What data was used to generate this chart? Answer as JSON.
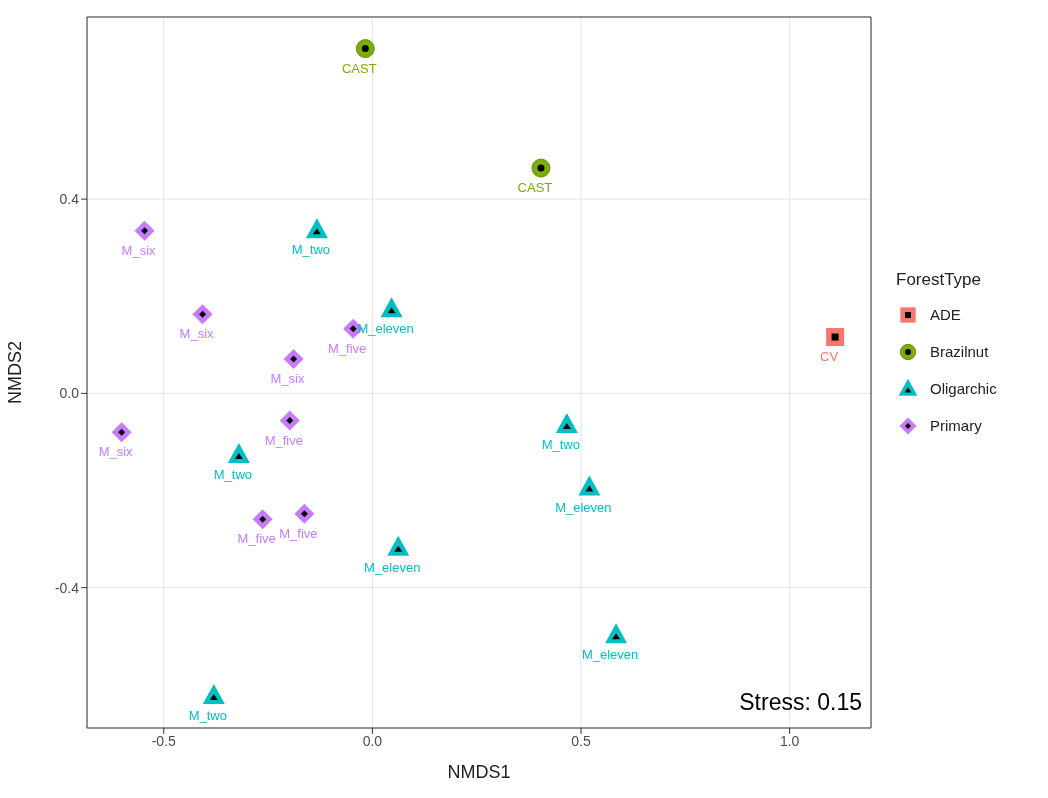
{
  "chart_data": {
    "type": "scatter",
    "xlabel": "NMDS1",
    "ylabel": "NMDS2",
    "legend_title": "ForestType",
    "legend": "right",
    "grid": true,
    "xlim": [
      -0.684,
      1.195
    ],
    "ylim": [
      -0.689,
      0.775
    ],
    "xticks": [
      {
        "value": -0.5,
        "label": "-0.5"
      },
      {
        "value": 0,
        "label": "0.0"
      },
      {
        "value": 0.5,
        "label": "0.5"
      },
      {
        "value": 1,
        "label": "1.0"
      }
    ],
    "yticks": [
      {
        "value": -0.4,
        "label": "-0.4"
      },
      {
        "value": 0,
        "label": "0.0"
      },
      {
        "value": 0.4,
        "label": "0.4"
      }
    ],
    "series": [
      {
        "name": "ADE",
        "color": "#f8766d",
        "marker": "square",
        "x": [
          1.109
        ],
        "values": [
          0.116
        ]
      },
      {
        "name": "Brazilnut",
        "color": "#7cae00",
        "marker": "circle",
        "x": [
          -0.017,
          0.404
        ],
        "values": [
          0.71,
          0.464
        ]
      },
      {
        "name": "Oligarchic",
        "color": "#00bfc4",
        "marker": "triangle",
        "x": [
          -0.133,
          0.046,
          0.466,
          -0.32,
          0.52,
          0.062,
          0.584,
          -0.38
        ],
        "values": [
          0.336,
          0.173,
          -0.065,
          -0.127,
          -0.194,
          -0.318,
          -0.498,
          -0.623
        ]
      },
      {
        "name": "Primary",
        "color": "#c77cff",
        "marker": "diamond",
        "x": [
          -0.546,
          -0.407,
          -0.046,
          -0.189,
          -0.198,
          -0.601,
          -0.163,
          -0.263
        ],
        "values": [
          0.335,
          0.163,
          0.133,
          0.071,
          -0.056,
          -0.08,
          -0.248,
          -0.259
        ]
      }
    ],
    "annotations": [
      {
        "text": "CV",
        "x": 1.109,
        "y": 0.116
      },
      {
        "text": "CAST",
        "x": -0.017,
        "y": 0.71
      },
      {
        "text": "CAST",
        "x": 0.404,
        "y": 0.464
      },
      {
        "text": "M_two",
        "x": -0.133,
        "y": 0.336
      },
      {
        "text": "M_eleven",
        "x": 0.046,
        "y": 0.173
      },
      {
        "text": "M_two",
        "x": 0.466,
        "y": -0.065
      },
      {
        "text": "M_two",
        "x": -0.32,
        "y": -0.127
      },
      {
        "text": "M_eleven",
        "x": 0.52,
        "y": -0.194
      },
      {
        "text": "M_eleven",
        "x": 0.062,
        "y": -0.318
      },
      {
        "text": "M_eleven",
        "x": 0.584,
        "y": -0.498
      },
      {
        "text": "M_two",
        "x": -0.38,
        "y": -0.623
      },
      {
        "text": "M_six",
        "x": -0.546,
        "y": 0.335
      },
      {
        "text": "M_six",
        "x": -0.407,
        "y": 0.163
      },
      {
        "text": "M_five",
        "x": -0.046,
        "y": 0.133
      },
      {
        "text": "M_six",
        "x": -0.189,
        "y": 0.071
      },
      {
        "text": "M_five",
        "x": -0.198,
        "y": -0.056
      },
      {
        "text": "M_six",
        "x": -0.601,
        "y": -0.08
      },
      {
        "text": "M_five",
        "x": -0.163,
        "y": -0.248
      },
      {
        "text": "M_five",
        "x": -0.263,
        "y": -0.259
      },
      "Stress: 0.15"
    ]
  }
}
